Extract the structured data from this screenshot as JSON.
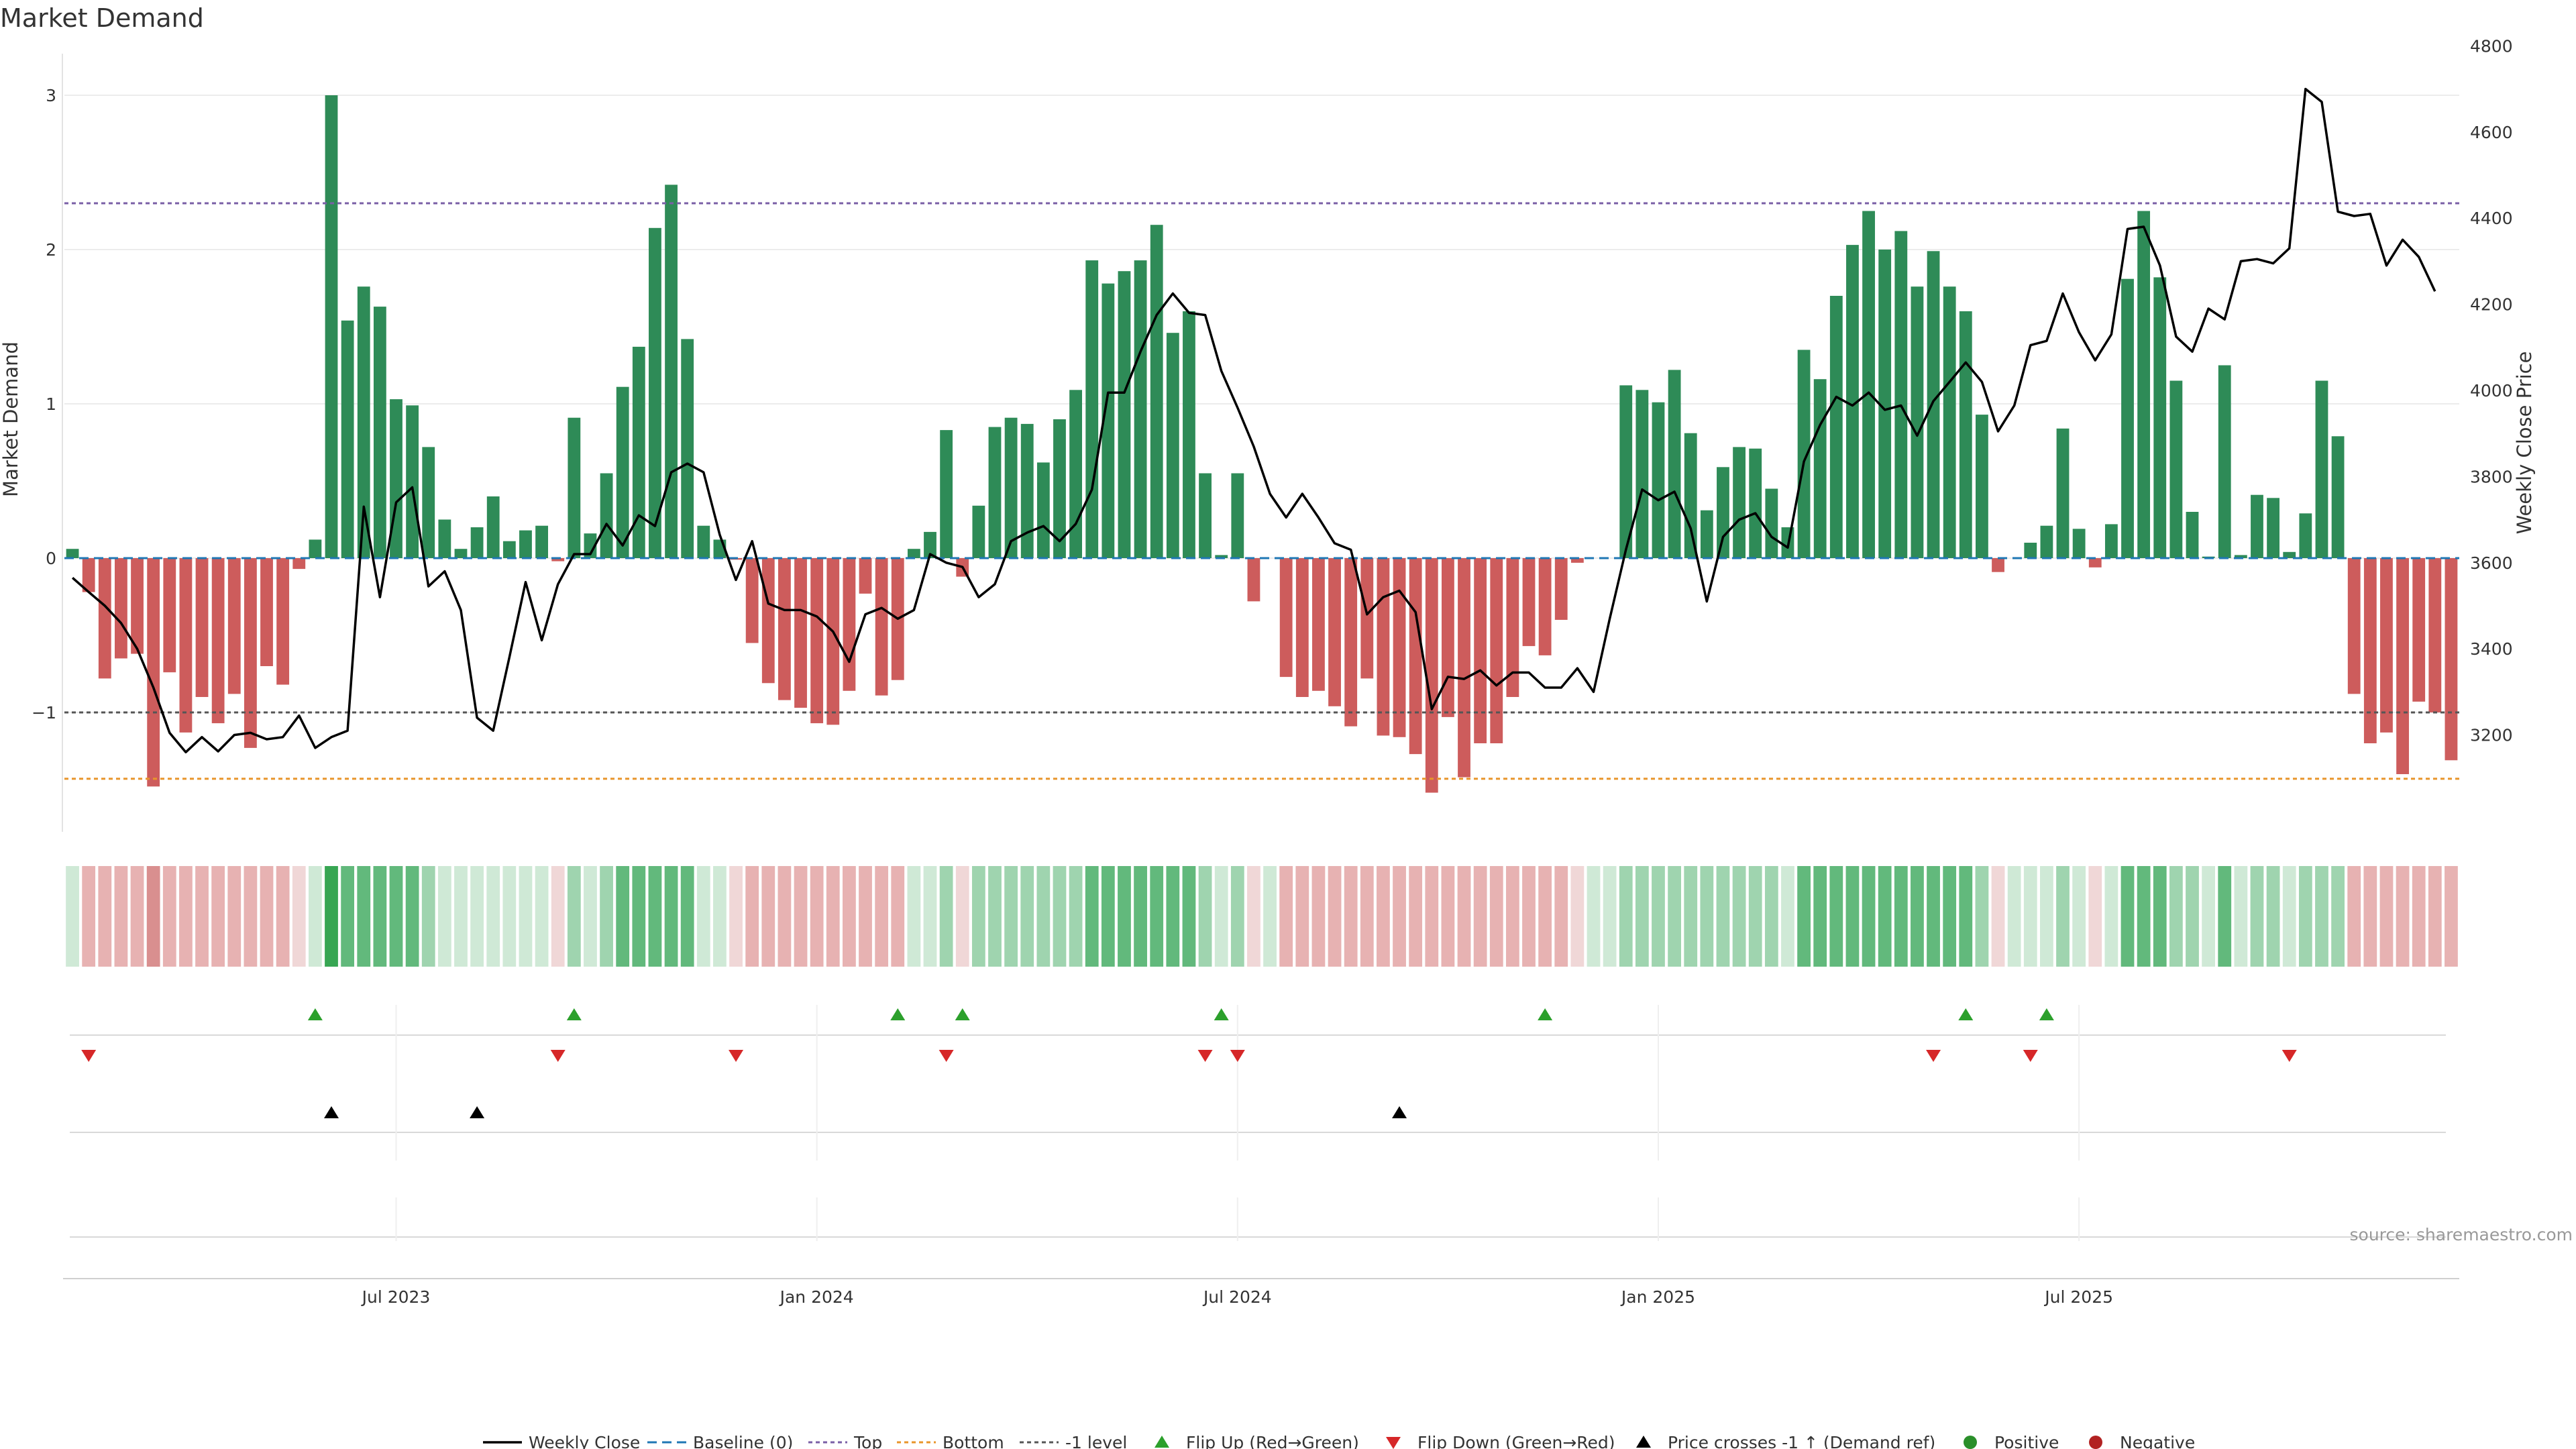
{
  "chart_data": {
    "type": "bar+line",
    "title": "Market Demand",
    "ylabel": "Market Demand",
    "y2label": "Weekly Close Price",
    "ylim": [
      -1.8,
      3.3
    ],
    "y2lim": [
      3000,
      4800
    ],
    "yticks": [
      3,
      2,
      1,
      0,
      -1
    ],
    "ytick_labels": [
      "3",
      "2",
      "1",
      "0",
      "−1"
    ],
    "y2ticks": [
      4800,
      4600,
      4400,
      4200,
      4000,
      3800,
      3600,
      3400,
      3200
    ],
    "date_ticks": [
      {
        "index": 20,
        "label": "Jul 2023"
      },
      {
        "index": 46,
        "label": "Jan 2024"
      },
      {
        "index": 72,
        "label": "Jul 2024"
      },
      {
        "index": 98,
        "label": "Jan 2025"
      },
      {
        "index": 124,
        "label": "Jul 2025"
      }
    ],
    "reference_lines": {
      "top": 2.3,
      "bottom": -1.43,
      "minus_one": -1,
      "baseline": 0
    },
    "demand": [
      0.06,
      -0.22,
      -0.78,
      -0.65,
      -0.62,
      -1.48,
      -0.74,
      -1.13,
      -0.9,
      -1.07,
      -0.88,
      -1.23,
      -0.7,
      -0.82,
      -0.07,
      0.12,
      3.0,
      1.54,
      1.76,
      1.63,
      1.03,
      0.99,
      0.72,
      0.25,
      0.06,
      0.2,
      0.4,
      0.11,
      0.18,
      0.21,
      -0.02,
      0.91,
      0.16,
      0.55,
      1.11,
      1.37,
      2.14,
      2.42,
      1.42,
      0.21,
      0.12,
      -0.01,
      -0.55,
      -0.81,
      -0.92,
      -0.97,
      -1.07,
      -1.08,
      -0.86,
      -0.23,
      -0.89,
      -0.79,
      0.06,
      0.17,
      0.83,
      -0.12,
      0.34,
      0.85,
      0.91,
      0.87,
      0.62,
      0.9,
      1.09,
      1.93,
      1.78,
      1.86,
      1.93,
      2.16,
      1.46,
      1.6,
      0.55,
      0.02,
      0.55,
      -0.28,
      0.0,
      -0.77,
      -0.9,
      -0.86,
      -0.96,
      -1.09,
      -0.78,
      -1.15,
      -1.16,
      -1.27,
      -1.52,
      -1.03,
      -1.42,
      -1.2,
      -1.2,
      -0.9,
      -0.57,
      -0.63,
      -0.4,
      -0.03,
      0.0,
      0.0,
      1.12,
      1.09,
      1.01,
      1.22,
      0.81,
      0.31,
      0.59,
      0.72,
      0.71,
      0.45,
      0.2,
      1.35,
      1.16,
      1.7,
      2.03,
      2.25,
      2.0,
      2.12,
      1.76,
      1.99,
      1.76,
      1.6,
      0.93,
      -0.09,
      0.0,
      0.1,
      0.21,
      0.84,
      0.19,
      -0.06,
      0.22,
      1.81,
      2.25,
      1.82,
      1.15,
      0.3,
      0.01,
      1.25,
      0.02,
      0.41,
      0.39,
      0.04,
      0.29,
      1.15,
      0.79,
      -0.88,
      -1.2,
      -1.13,
      -1.4,
      -0.93,
      -1.0,
      -1.31
    ],
    "weekly_close": [
      3565,
      3532,
      3500,
      3460,
      3400,
      3310,
      3205,
      3160,
      3195,
      3162,
      3200,
      3205,
      3190,
      3195,
      3245,
      3170,
      3195,
      3210,
      3730,
      3520,
      3740,
      3775,
      3545,
      3580,
      3490,
      3240,
      3210,
      3380,
      3555,
      3420,
      3550,
      3620,
      3620,
      3690,
      3640,
      3710,
      3685,
      3810,
      3830,
      3810,
      3665,
      3560,
      3650,
      3505,
      3490,
      3490,
      3475,
      3440,
      3370,
      3480,
      3495,
      3470,
      3490,
      3620,
      3600,
      3590,
      3520,
      3550,
      3650,
      3670,
      3685,
      3650,
      3690,
      3770,
      3995,
      3995,
      4090,
      4175,
      4225,
      4180,
      4175,
      4045,
      3960,
      3870,
      3760,
      3705,
      3760,
      3705,
      3645,
      3630,
      3480,
      3520,
      3535,
      3485,
      3260,
      3335,
      3330,
      3350,
      3315,
      3345,
      3345,
      3310,
      3310,
      3355,
      3300,
      3470,
      3630,
      3770,
      3745,
      3765,
      3680,
      3510,
      3660,
      3700,
      3715,
      3660,
      3635,
      3835,
      3920,
      3985,
      3965,
      3995,
      3955,
      3965,
      3895,
      3975,
      4020,
      4065,
      4020,
      3905,
      3965,
      4105,
      4115,
      4225,
      4135,
      4070,
      4130,
      4375,
      4380,
      4290,
      4125,
      4090,
      4190,
      4165,
      4300,
      4305,
      4295,
      4330,
      4700,
      4670,
      4415,
      4405,
      4410,
      4290,
      4350,
      4310,
      4230
    ],
    "strength_bins": [
      1,
      -2,
      -2,
      -2,
      -2,
      -3,
      -2,
      -2,
      -2,
      -2,
      -2,
      -2,
      -2,
      -2,
      -1,
      1,
      4,
      3,
      3,
      3,
      3,
      3,
      2,
      1,
      1,
      1,
      1,
      1,
      1,
      1,
      -1,
      2,
      1,
      2,
      3,
      3,
      3,
      3,
      3,
      1,
      1,
      -1,
      -2,
      -2,
      -2,
      -2,
      -2,
      -2,
      -2,
      -2,
      -2,
      -2,
      1,
      1,
      2,
      -1,
      2,
      2,
      2,
      2,
      2,
      2,
      2,
      3,
      3,
      3,
      3,
      3,
      3,
      3,
      2,
      1,
      2,
      -1,
      1,
      -2,
      -2,
      -2,
      -2,
      -2,
      -2,
      -2,
      -2,
      -2,
      -2,
      -2,
      -2,
      -2,
      -2,
      -2,
      -2,
      -2,
      -2,
      -1,
      1,
      1,
      2,
      2,
      2,
      2,
      2,
      2,
      2,
      2,
      2,
      2,
      1,
      3,
      3,
      3,
      3,
      3,
      3,
      3,
      3,
      3,
      3,
      3,
      2,
      -1,
      1,
      1,
      1,
      2,
      1,
      -1,
      1,
      3,
      3,
      3,
      2,
      2,
      1,
      3,
      1,
      2,
      2,
      1,
      2,
      2,
      2,
      -2,
      -2,
      -2,
      -2,
      -2,
      -2,
      -2
    ],
    "flip_up_indices": [
      15,
      31,
      51,
      55,
      71,
      91,
      117,
      122
    ],
    "flip_down_indices": [
      1,
      30,
      41,
      54,
      70,
      72,
      115,
      121,
      137
    ],
    "price_cross_indices": [
      16,
      25,
      82
    ],
    "series": [
      {
        "name": "Weekly Close",
        "color": "#000000"
      },
      {
        "name": "Baseline (0)",
        "color": "#1f77b4"
      },
      {
        "name": "Top",
        "color": "#7a5fa6"
      },
      {
        "name": "Bottom",
        "color": "#e8952a"
      },
      {
        "name": "-1 level",
        "color": "#555555"
      },
      {
        "name": "Flip Up (Red→Green)",
        "color": "#2ca02c"
      },
      {
        "name": "Flip Down (Green→Red)",
        "color": "#d62728"
      },
      {
        "name": "Price crosses -1 ↑ (Demand ref)",
        "color": "#000000"
      },
      {
        "name": "Positive",
        "color": "#2a8f2a"
      },
      {
        "name": "Negative",
        "color": "#b22222"
      }
    ],
    "colors": {
      "pos_bar": "#2e8b57",
      "neg_bar": "#cd5c5c"
    }
  },
  "source": "source: sharemaestro.com"
}
